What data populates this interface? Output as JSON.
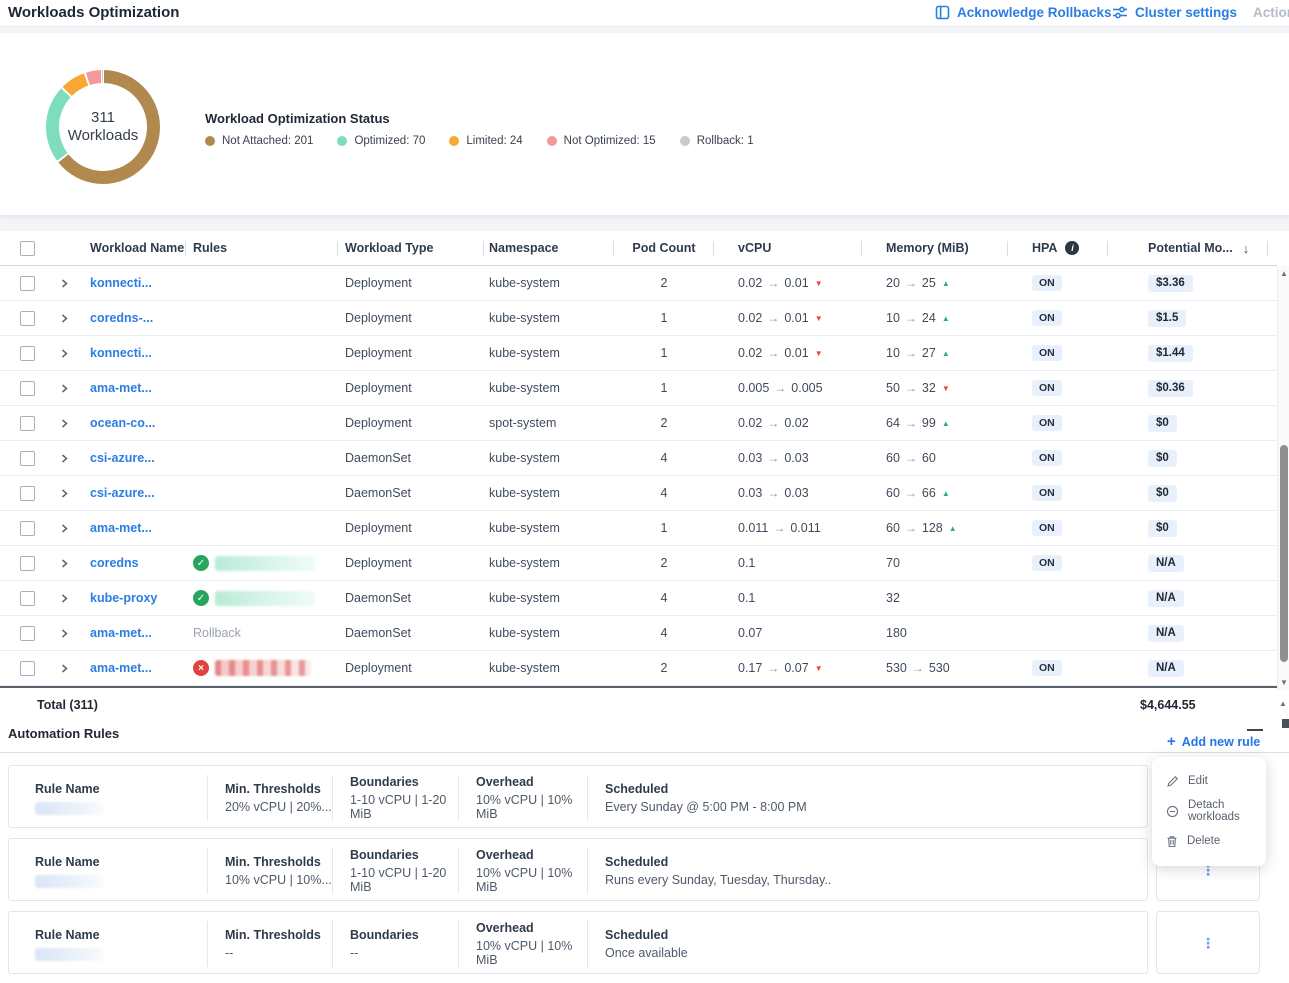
{
  "header": {
    "title": "Workloads Optimization",
    "actions": [
      {
        "label": "Acknowledge Rollbacks",
        "icon": "acknowledge-panel-icon",
        "enabled": true
      },
      {
        "label": "Cluster settings",
        "icon": "sliders-icon",
        "enabled": true
      },
      {
        "label": "Actions",
        "icon": "",
        "enabled": false
      }
    ]
  },
  "summary": {
    "center_value": "311",
    "center_label": "Workloads",
    "status_title": "Workload Optimization Status",
    "chart_data": {
      "type": "pie",
      "title": "Workload Optimization Status",
      "total": 311,
      "segments": [
        {
          "label": "Not Attached",
          "value": 201,
          "color": "#b1894e"
        },
        {
          "label": "Optimized",
          "value": 70,
          "color": "#7eddbc"
        },
        {
          "label": "Limited",
          "value": 24,
          "color": "#f7a832"
        },
        {
          "label": "Not Optimized",
          "value": 15,
          "color": "#f5989b"
        },
        {
          "label": "Rollback",
          "value": 1,
          "color": "#c6cad0"
        }
      ]
    },
    "legend": [
      {
        "label": "Not Attached: 201",
        "color": "#b1894e"
      },
      {
        "label": "Optimized: 70",
        "color": "#7eddbc"
      },
      {
        "label": "Limited: 24",
        "color": "#f7a832"
      },
      {
        "label": "Not Optimized: 15",
        "color": "#f5989b"
      },
      {
        "label": "Rollback: 1",
        "color": "#c6cad0"
      }
    ]
  },
  "table": {
    "columns": [
      "Workload Name",
      "Rules",
      "Workload Type",
      "Namespace",
      "Pod Count",
      "vCPU",
      "Memory (MiB)",
      "HPA",
      "Potential Mo..."
    ],
    "rows": [
      {
        "name": "konnecti...",
        "rule": {
          "status": "none"
        },
        "type": "Deployment",
        "namespace": "kube-system",
        "pods": "2",
        "cpu": {
          "from": "0.02",
          "to": "0.01",
          "trend": "down"
        },
        "mem": {
          "from": "20",
          "to": "25",
          "trend": "up"
        },
        "hpa": "ON",
        "potential": "$3.36"
      },
      {
        "name": "coredns-...",
        "rule": {
          "status": "none"
        },
        "type": "Deployment",
        "namespace": "kube-system",
        "pods": "1",
        "cpu": {
          "from": "0.02",
          "to": "0.01",
          "trend": "down"
        },
        "mem": {
          "from": "10",
          "to": "24",
          "trend": "up"
        },
        "hpa": "ON",
        "potential": "$1.5"
      },
      {
        "name": "konnecti...",
        "rule": {
          "status": "none"
        },
        "type": "Deployment",
        "namespace": "kube-system",
        "pods": "1",
        "cpu": {
          "from": "0.02",
          "to": "0.01",
          "trend": "down"
        },
        "mem": {
          "from": "10",
          "to": "27",
          "trend": "up"
        },
        "hpa": "ON",
        "potential": "$1.44"
      },
      {
        "name": "ama-met...",
        "rule": {
          "status": "none"
        },
        "type": "Deployment",
        "namespace": "kube-system",
        "pods": "1",
        "cpu": {
          "from": "0.005",
          "to": "0.005"
        },
        "mem": {
          "from": "50",
          "to": "32",
          "trend": "down"
        },
        "hpa": "ON",
        "potential": "$0.36"
      },
      {
        "name": "ocean-co...",
        "rule": {
          "status": "none"
        },
        "type": "Deployment",
        "namespace": "spot-system",
        "pods": "2",
        "cpu": {
          "from": "0.02",
          "to": "0.02"
        },
        "mem": {
          "from": "64",
          "to": "99",
          "trend": "up"
        },
        "hpa": "ON",
        "potential": "$0"
      },
      {
        "name": "csi-azure...",
        "rule": {
          "status": "none"
        },
        "type": "DaemonSet",
        "namespace": "kube-system",
        "pods": "4",
        "cpu": {
          "from": "0.03",
          "to": "0.03"
        },
        "mem": {
          "from": "60",
          "to": "60"
        },
        "hpa": "ON",
        "potential": "$0"
      },
      {
        "name": "csi-azure...",
        "rule": {
          "status": "none"
        },
        "type": "DaemonSet",
        "namespace": "kube-system",
        "pods": "4",
        "cpu": {
          "from": "0.03",
          "to": "0.03"
        },
        "mem": {
          "from": "60",
          "to": "66",
          "trend": "up"
        },
        "hpa": "ON",
        "potential": "$0"
      },
      {
        "name": "ama-met...",
        "rule": {
          "status": "none"
        },
        "type": "Deployment",
        "namespace": "kube-system",
        "pods": "1",
        "cpu": {
          "from": "0.011",
          "to": "0.011"
        },
        "mem": {
          "from": "60",
          "to": "128",
          "trend": "up"
        },
        "hpa": "ON",
        "potential": "$0"
      },
      {
        "name": "coredns",
        "rule": {
          "status": "attached-ok"
        },
        "type": "Deployment",
        "namespace": "kube-system",
        "pods": "2",
        "cpu": {
          "from": "0.1"
        },
        "mem": {
          "from": "70"
        },
        "hpa": "ON",
        "potential": "N/A"
      },
      {
        "name": "kube-proxy",
        "rule": {
          "status": "attached-ok"
        },
        "type": "DaemonSet",
        "namespace": "kube-system",
        "pods": "4",
        "cpu": {
          "from": "0.1"
        },
        "mem": {
          "from": "32"
        },
        "hpa": "",
        "potential": "N/A"
      },
      {
        "name": "ama-met...",
        "rule": {
          "status": "text",
          "label": "Rollback"
        },
        "type": "DaemonSet",
        "namespace": "kube-system",
        "pods": "4",
        "cpu": {
          "from": "0.07"
        },
        "mem": {
          "from": "180"
        },
        "hpa": "",
        "potential": "N/A"
      },
      {
        "name": "ama-met...",
        "rule": {
          "status": "attached-error"
        },
        "type": "Deployment",
        "namespace": "kube-system",
        "pods": "2",
        "cpu": {
          "from": "0.17",
          "to": "0.07",
          "trend": "down"
        },
        "mem": {
          "from": "530",
          "to": "530"
        },
        "hpa": "ON",
        "potential": "N/A"
      }
    ],
    "total_label": "Total (311)",
    "total_value": "$4,644.55"
  },
  "automation": {
    "title": "Automation Rules",
    "add_button": "Add new rule",
    "card_labels": {
      "name": "Rule Name",
      "min": "Min. Thresholds",
      "boundaries": "Boundaries",
      "overhead": "Overhead",
      "scheduled": "Scheduled"
    },
    "cards": [
      {
        "min": "20% vCPU | 20%...",
        "boundaries": "1-10 vCPU | 1-20 MiB",
        "overhead": "10% vCPU | 10% MiB",
        "scheduled": "Every Sunday @ 5:00 PM - 8:00 PM"
      },
      {
        "min": "10% vCPU | 10%...",
        "boundaries": "1-10 vCPU | 1-20 MiB",
        "overhead": "10% vCPU | 10% MiB",
        "scheduled": "Runs every Sunday, Tuesday, Thursday.."
      },
      {
        "min": "--",
        "boundaries": "--",
        "overhead": "10% vCPU | 10% MiB",
        "scheduled": "Once available"
      }
    ],
    "context_menu": [
      {
        "label": "Edit",
        "icon": "pencil-icon"
      },
      {
        "label": "Detach workloads",
        "icon": "detach-icon"
      },
      {
        "label": "Delete",
        "icon": "trash-icon"
      }
    ]
  },
  "icons": {
    "arrow": "→",
    "trend_up": "▲",
    "trend_down": "▼",
    "check": "✓",
    "cross": "×",
    "kebab": "⋮",
    "plus": "+",
    "info": "i",
    "sort_down": "↓"
  }
}
